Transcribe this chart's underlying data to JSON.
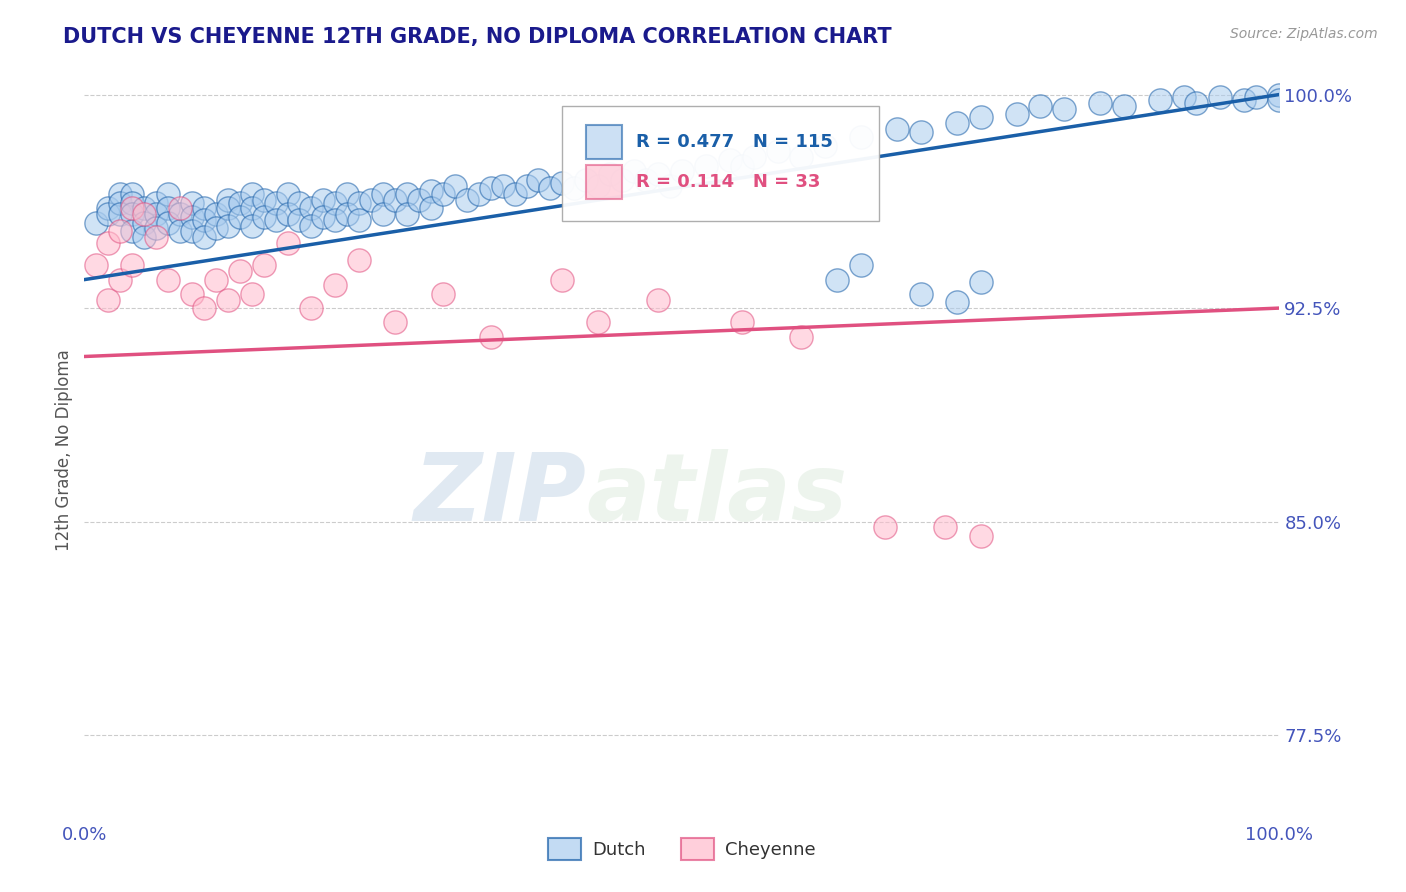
{
  "title": "DUTCH VS CHEYENNE 12TH GRADE, NO DIPLOMA CORRELATION CHART",
  "source_text": "Source: ZipAtlas.com",
  "ylabel": "12th Grade, No Diploma",
  "xlim": [
    0.0,
    1.0
  ],
  "ylim": [
    0.745,
    1.005
  ],
  "yticks": [
    0.775,
    0.85,
    0.925,
    1.0
  ],
  "ytick_labels": [
    "77.5%",
    "85.0%",
    "92.5%",
    "100.0%"
  ],
  "background_color": "#ffffff",
  "grid_color": "#cccccc",
  "dutch_color": "#aaccee",
  "cheyenne_color": "#ffbbcc",
  "dutch_line_color": "#1a5fa8",
  "cheyenne_line_color": "#e05080",
  "legend_dutch_R": 0.477,
  "legend_dutch_N": 115,
  "legend_cheyenne_R": 0.114,
  "legend_cheyenne_N": 33,
  "watermark_zip": "ZIP",
  "watermark_atlas": "atlas",
  "title_color": "#1a1a8c",
  "axis_label_color": "#555555",
  "tick_label_color": "#4455bb",
  "dutch_line_start_y": 0.935,
  "dutch_line_end_y": 1.0,
  "cheyenne_line_start_y": 0.908,
  "cheyenne_line_end_y": 0.925,
  "dutch_scatter_x": [
    0.01,
    0.02,
    0.02,
    0.03,
    0.03,
    0.03,
    0.04,
    0.04,
    0.04,
    0.04,
    0.05,
    0.05,
    0.05,
    0.06,
    0.06,
    0.06,
    0.07,
    0.07,
    0.07,
    0.08,
    0.08,
    0.09,
    0.09,
    0.09,
    0.1,
    0.1,
    0.1,
    0.11,
    0.11,
    0.12,
    0.12,
    0.12,
    0.13,
    0.13,
    0.14,
    0.14,
    0.14,
    0.15,
    0.15,
    0.16,
    0.16,
    0.17,
    0.17,
    0.18,
    0.18,
    0.19,
    0.19,
    0.2,
    0.2,
    0.21,
    0.21,
    0.22,
    0.22,
    0.23,
    0.23,
    0.24,
    0.25,
    0.25,
    0.26,
    0.27,
    0.27,
    0.28,
    0.29,
    0.29,
    0.3,
    0.31,
    0.32,
    0.33,
    0.34,
    0.35,
    0.36,
    0.37,
    0.38,
    0.39,
    0.4,
    0.41,
    0.42,
    0.43,
    0.44,
    0.45,
    0.46,
    0.47,
    0.48,
    0.49,
    0.5,
    0.52,
    0.54,
    0.55,
    0.56,
    0.58,
    0.6,
    0.62,
    0.65,
    0.68,
    0.7,
    0.73,
    0.75,
    0.78,
    0.8,
    0.82,
    0.85,
    0.87,
    0.9,
    0.92,
    0.93,
    0.95,
    0.97,
    0.98,
    1.0,
    1.0,
    0.63,
    0.65,
    0.7,
    0.73,
    0.75
  ],
  "dutch_scatter_y": [
    0.955,
    0.96,
    0.958,
    0.965,
    0.962,
    0.958,
    0.965,
    0.962,
    0.958,
    0.952,
    0.96,
    0.955,
    0.95,
    0.962,
    0.958,
    0.953,
    0.965,
    0.96,
    0.955,
    0.958,
    0.952,
    0.962,
    0.957,
    0.952,
    0.96,
    0.956,
    0.95,
    0.958,
    0.953,
    0.963,
    0.96,
    0.954,
    0.962,
    0.957,
    0.965,
    0.96,
    0.954,
    0.963,
    0.957,
    0.962,
    0.956,
    0.965,
    0.958,
    0.962,
    0.956,
    0.96,
    0.954,
    0.963,
    0.957,
    0.962,
    0.956,
    0.965,
    0.958,
    0.962,
    0.956,
    0.963,
    0.965,
    0.958,
    0.963,
    0.965,
    0.958,
    0.963,
    0.966,
    0.96,
    0.965,
    0.968,
    0.963,
    0.965,
    0.967,
    0.968,
    0.965,
    0.968,
    0.97,
    0.967,
    0.969,
    0.967,
    0.97,
    0.968,
    0.972,
    0.97,
    0.973,
    0.97,
    0.972,
    0.968,
    0.973,
    0.975,
    0.977,
    0.975,
    0.978,
    0.98,
    0.978,
    0.982,
    0.985,
    0.988,
    0.987,
    0.99,
    0.992,
    0.993,
    0.996,
    0.995,
    0.997,
    0.996,
    0.998,
    0.999,
    0.997,
    0.999,
    0.998,
    0.999,
    1.0,
    0.998,
    0.935,
    0.94,
    0.93,
    0.927,
    0.934
  ],
  "cheyenne_scatter_x": [
    0.01,
    0.02,
    0.02,
    0.03,
    0.03,
    0.04,
    0.04,
    0.05,
    0.06,
    0.07,
    0.08,
    0.09,
    0.1,
    0.11,
    0.12,
    0.13,
    0.14,
    0.15,
    0.17,
    0.19,
    0.21,
    0.23,
    0.26,
    0.3,
    0.34,
    0.4,
    0.43,
    0.48,
    0.55,
    0.6,
    0.67,
    0.72,
    0.75
  ],
  "cheyenne_scatter_y": [
    0.94,
    0.948,
    0.928,
    0.952,
    0.935,
    0.96,
    0.94,
    0.958,
    0.95,
    0.935,
    0.96,
    0.93,
    0.925,
    0.935,
    0.928,
    0.938,
    0.93,
    0.94,
    0.948,
    0.925,
    0.933,
    0.942,
    0.92,
    0.93,
    0.915,
    0.935,
    0.92,
    0.928,
    0.92,
    0.915,
    0.848,
    0.848,
    0.845
  ]
}
